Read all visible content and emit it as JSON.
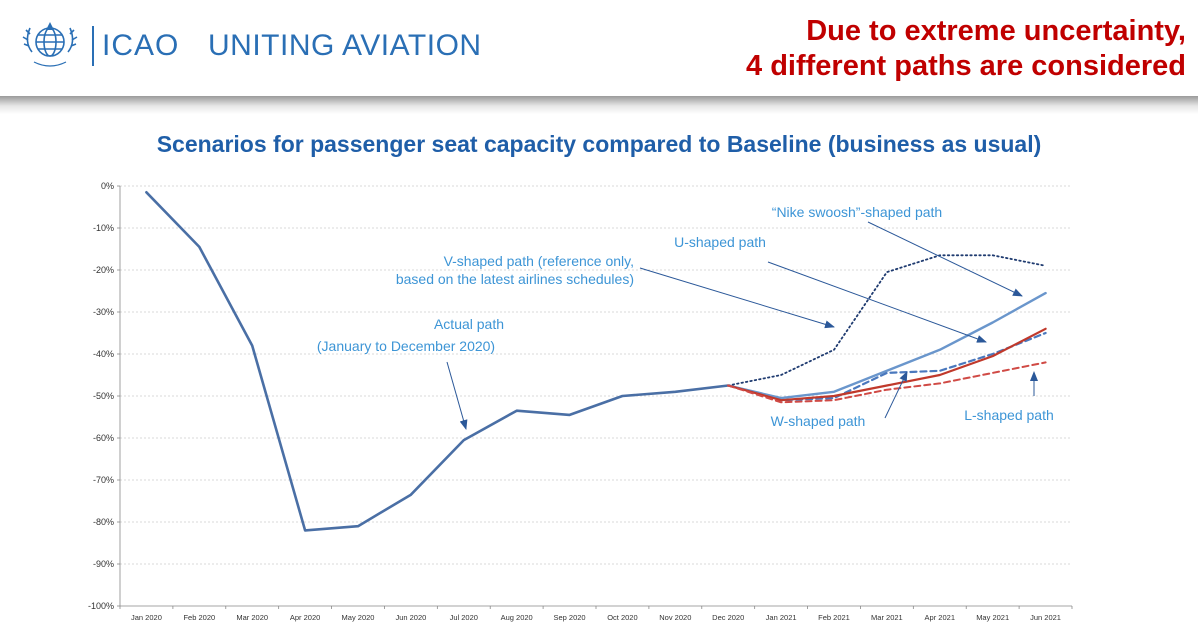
{
  "header": {
    "brand_name": "ICAO",
    "brand_tagline": "UNITING AVIATION",
    "headline_line1": "Due to extreme uncertainty,",
    "headline_line2": "4 different paths are considered",
    "icons": [
      "icao-emblem-icon"
    ]
  },
  "colors": {
    "actual": "#4a6fa5",
    "u_shaped": "#6a96cc",
    "w_shaped": "#4a78bd",
    "v_shaped": "#1f3b70",
    "nike": "#6a96cc",
    "l_shaped": "#d04a45",
    "red_solid": "#c0392b",
    "annotation": "#3d95d6",
    "title": "#1f5ea8",
    "headline": "#c00000"
  },
  "chart_data": {
    "type": "line",
    "title": "Scenarios for passenger seat capacity compared to Baseline (business as usual)",
    "categories": [
      "Jan 2020",
      "Feb 2020",
      "Mar 2020",
      "Apr 2020",
      "May 2020",
      "Jun 2020",
      "Jul 2020",
      "Aug 2020",
      "Sep 2020",
      "Oct 2020",
      "Nov 2020",
      "Dec 2020",
      "Jan 2021",
      "Feb 2021",
      "Mar 2021",
      "Apr 2021",
      "May 2021",
      "Jun 2021"
    ],
    "y_ticks": [
      "0%",
      "-10%",
      "-20%",
      "-30%",
      "-40%",
      "-50%",
      "-60%",
      "-70%",
      "-80%",
      "-90%",
      "-100%"
    ],
    "ylim": [
      -100,
      0
    ],
    "grid": true,
    "series": [
      {
        "key": "actual",
        "style": "solid",
        "values": [
          -1.5,
          -14.5,
          -38,
          -82,
          -81,
          -73.5,
          -60.5,
          -53.5,
          -54.5,
          -50,
          -49,
          -47.5,
          null,
          null,
          null,
          null,
          null,
          null
        ]
      },
      {
        "key": "v_shaped",
        "style": "dotted",
        "values": [
          null,
          null,
          null,
          null,
          null,
          null,
          null,
          null,
          null,
          null,
          null,
          -47.5,
          -45,
          -39,
          -20.5,
          -16.5,
          -16.5,
          -19
        ]
      },
      {
        "key": "u_shaped",
        "style": "solid",
        "values": [
          null,
          null,
          null,
          null,
          null,
          null,
          null,
          null,
          null,
          null,
          null,
          -47.5,
          -50.5,
          -49,
          -44,
          -39,
          -32.5,
          -25.5
        ]
      },
      {
        "key": "w_shaped",
        "style": "dashed",
        "values": [
          null,
          null,
          null,
          null,
          null,
          null,
          null,
          null,
          null,
          null,
          null,
          -47.5,
          -51,
          -50.5,
          -44.5,
          -44,
          -40,
          -35
        ]
      },
      {
        "key": "red_solid",
        "style": "solid",
        "values": [
          null,
          null,
          null,
          null,
          null,
          null,
          null,
          null,
          null,
          null,
          null,
          -47.5,
          -51,
          -50,
          -47.5,
          -45,
          -40.5,
          -34
        ]
      },
      {
        "key": "l_shaped",
        "style": "dashed",
        "values": [
          null,
          null,
          null,
          null,
          null,
          null,
          null,
          null,
          null,
          null,
          null,
          -47.5,
          -51.5,
          -51,
          -48.5,
          -47,
          -44.5,
          -42
        ]
      }
    ],
    "annotations": {
      "nike": "“Nike swoosh”-shaped path",
      "u_shaped": "U-shaped path",
      "v_shaped_line1": "V-shaped path (reference only,",
      "v_shaped_line2": "based on the latest airlines schedules)",
      "actual_line1": "Actual path",
      "actual_line2": "(January to December 2020)",
      "w_shaped": "W-shaped path",
      "l_shaped": "L-shaped path"
    }
  }
}
